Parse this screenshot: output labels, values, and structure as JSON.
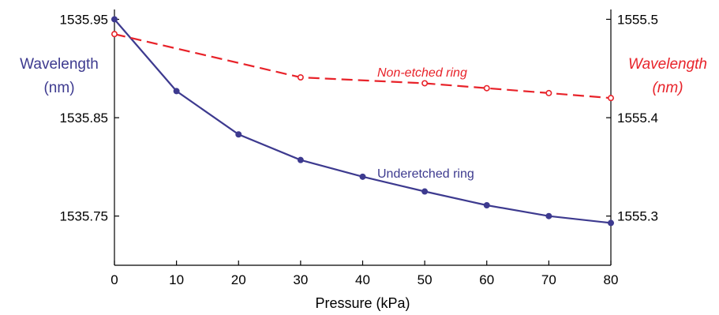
{
  "chart_data": {
    "type": "line",
    "xlabel": "Pressure (kPa)",
    "xlim": [
      0,
      80
    ],
    "x_ticks": [
      0,
      10,
      20,
      30,
      40,
      50,
      60,
      70,
      80
    ],
    "x_tick_labels": [
      "0",
      "10",
      "20",
      "30",
      "40",
      "50",
      "60",
      "70",
      "80"
    ],
    "y_left": {
      "label_lines": [
        "Wavelength",
        "(nm)"
      ],
      "ylim": [
        1535.7,
        1535.96
      ],
      "ticks": [
        1535.75,
        1535.85,
        1535.95
      ],
      "tick_labels": [
        "1535.75",
        "1535.85",
        "1535.95"
      ],
      "color": "#3d3a8f"
    },
    "y_right": {
      "label_lines": [
        "Wavelength",
        "(nm)"
      ],
      "ylim": [
        1555.25,
        1555.51
      ],
      "ticks": [
        1555.3,
        1555.4,
        1555.5
      ],
      "tick_labels": [
        "1555.3",
        "1555.4",
        "1555.5"
      ],
      "color": "#e8232a"
    },
    "series": [
      {
        "name": "Underetched ring",
        "axis": "left",
        "color": "#3d3a8f",
        "line_style": "solid",
        "marker": "filled-circle",
        "x": [
          0,
          10,
          20,
          30,
          40,
          50,
          60,
          70,
          80
        ],
        "values": [
          1535.95,
          1535.877,
          1535.833,
          1535.807,
          1535.79,
          1535.775,
          1535.761,
          1535.75,
          1535.743
        ]
      },
      {
        "name": "Non-etched ring",
        "axis": "right",
        "color": "#e8232a",
        "line_style": "dashed",
        "marker": "open-circle",
        "x": [
          0,
          30,
          50,
          60,
          70,
          80
        ],
        "values": [
          1555.485,
          1555.441,
          1555.435,
          1555.43,
          1555.425,
          1555.42
        ]
      }
    ],
    "grid": false
  }
}
